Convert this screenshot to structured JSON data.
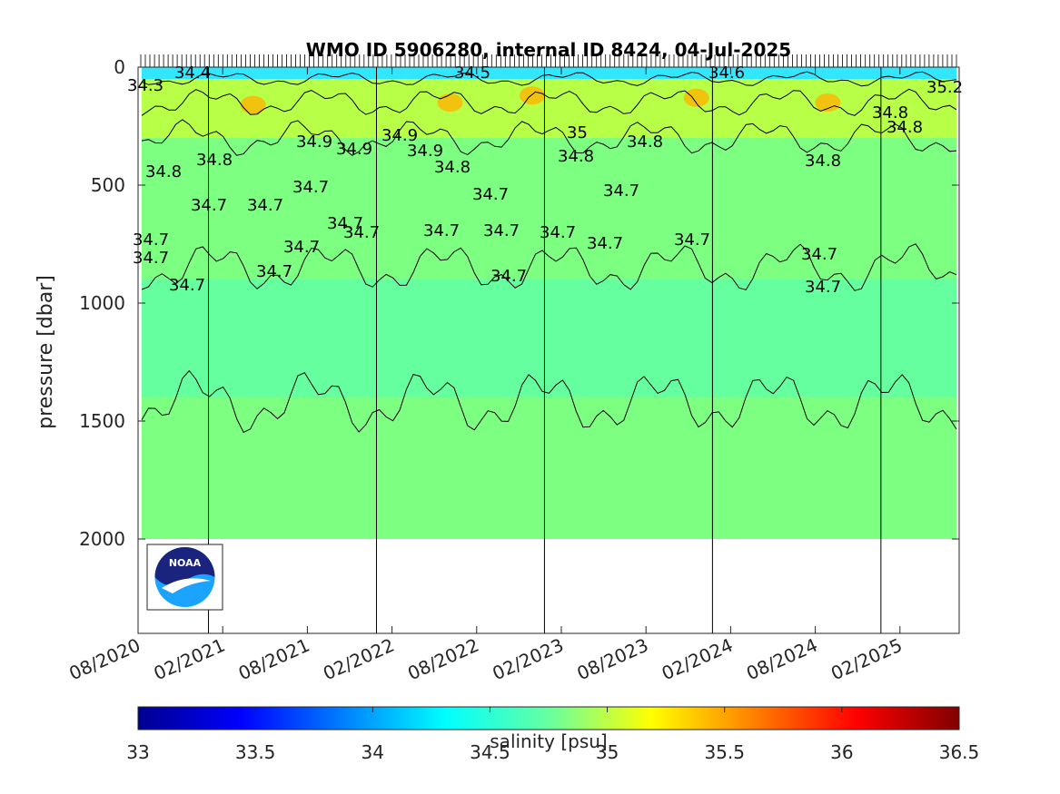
{
  "chart_data": {
    "type": "heatmap",
    "title": "WMO ID 5906280, internal ID 8424, 04-Jul-2025",
    "ylabel": "pressure [dbar]",
    "xlabel": "",
    "ylim": [
      2400,
      0
    ],
    "y_reverse": true,
    "x_range": [
      "2020-08-01",
      "2025-06-20"
    ],
    "x_tick_labels": [
      "08/2020",
      "02/2021",
      "08/2021",
      "02/2022",
      "08/2022",
      "02/2023",
      "08/2023",
      "02/2024",
      "08/2024",
      "02/2025"
    ],
    "y_ticks": [
      0,
      500,
      1000,
      1500,
      2000
    ],
    "year_divider_dates": [
      "2021-01-01",
      "2022-01-01",
      "2023-01-01",
      "2024-01-01",
      "2025-01-01"
    ],
    "colorbar": {
      "label": "salinity [psu]",
      "range": [
        33,
        36.5
      ],
      "ticks": [
        33,
        33.5,
        34,
        34.5,
        35,
        35.5,
        36,
        36.5
      ],
      "colormap": "jet"
    },
    "salinity_layers": [
      {
        "pressure_range": [
          0,
          50
        ],
        "salinity": 34.4
      },
      {
        "pressure_range": [
          50,
          300
        ],
        "salinity": 34.9
      },
      {
        "pressure_range": [
          300,
          900
        ],
        "salinity": 34.75
      },
      {
        "pressure_range": [
          900,
          1400
        ],
        "salinity": 34.7
      },
      {
        "pressure_range": [
          1400,
          2000
        ],
        "salinity": 34.75
      }
    ],
    "contour_labels": [
      "34.7",
      "34.7",
      "34.7",
      "34.7",
      "34.7",
      "34.7",
      "34.7",
      "34.7",
      "34.7",
      "34.7",
      "34.7",
      "34.7",
      "34.7",
      "34.7",
      "34.7",
      "34.7",
      "34.7",
      "34.7",
      "34.7",
      "34.7",
      "34.8",
      "34.8",
      "34.8",
      "34.8",
      "34.8",
      "34.8",
      "34.8",
      "34.8",
      "34.9",
      "34.9",
      "34.9",
      "34.9",
      "35",
      "35.2",
      "34.3",
      "34.4",
      "34.5",
      "34.6"
    ],
    "grid": false
  },
  "logo": {
    "text": "NOAA"
  },
  "colors": {
    "axis": "#262626",
    "deep_fill": "#7dff82",
    "mid_fill": "#66ffa0",
    "upper_fill": "#b8ff48",
    "surface_fill": "#33e6ff",
    "warm_spot": "#ffb400"
  }
}
